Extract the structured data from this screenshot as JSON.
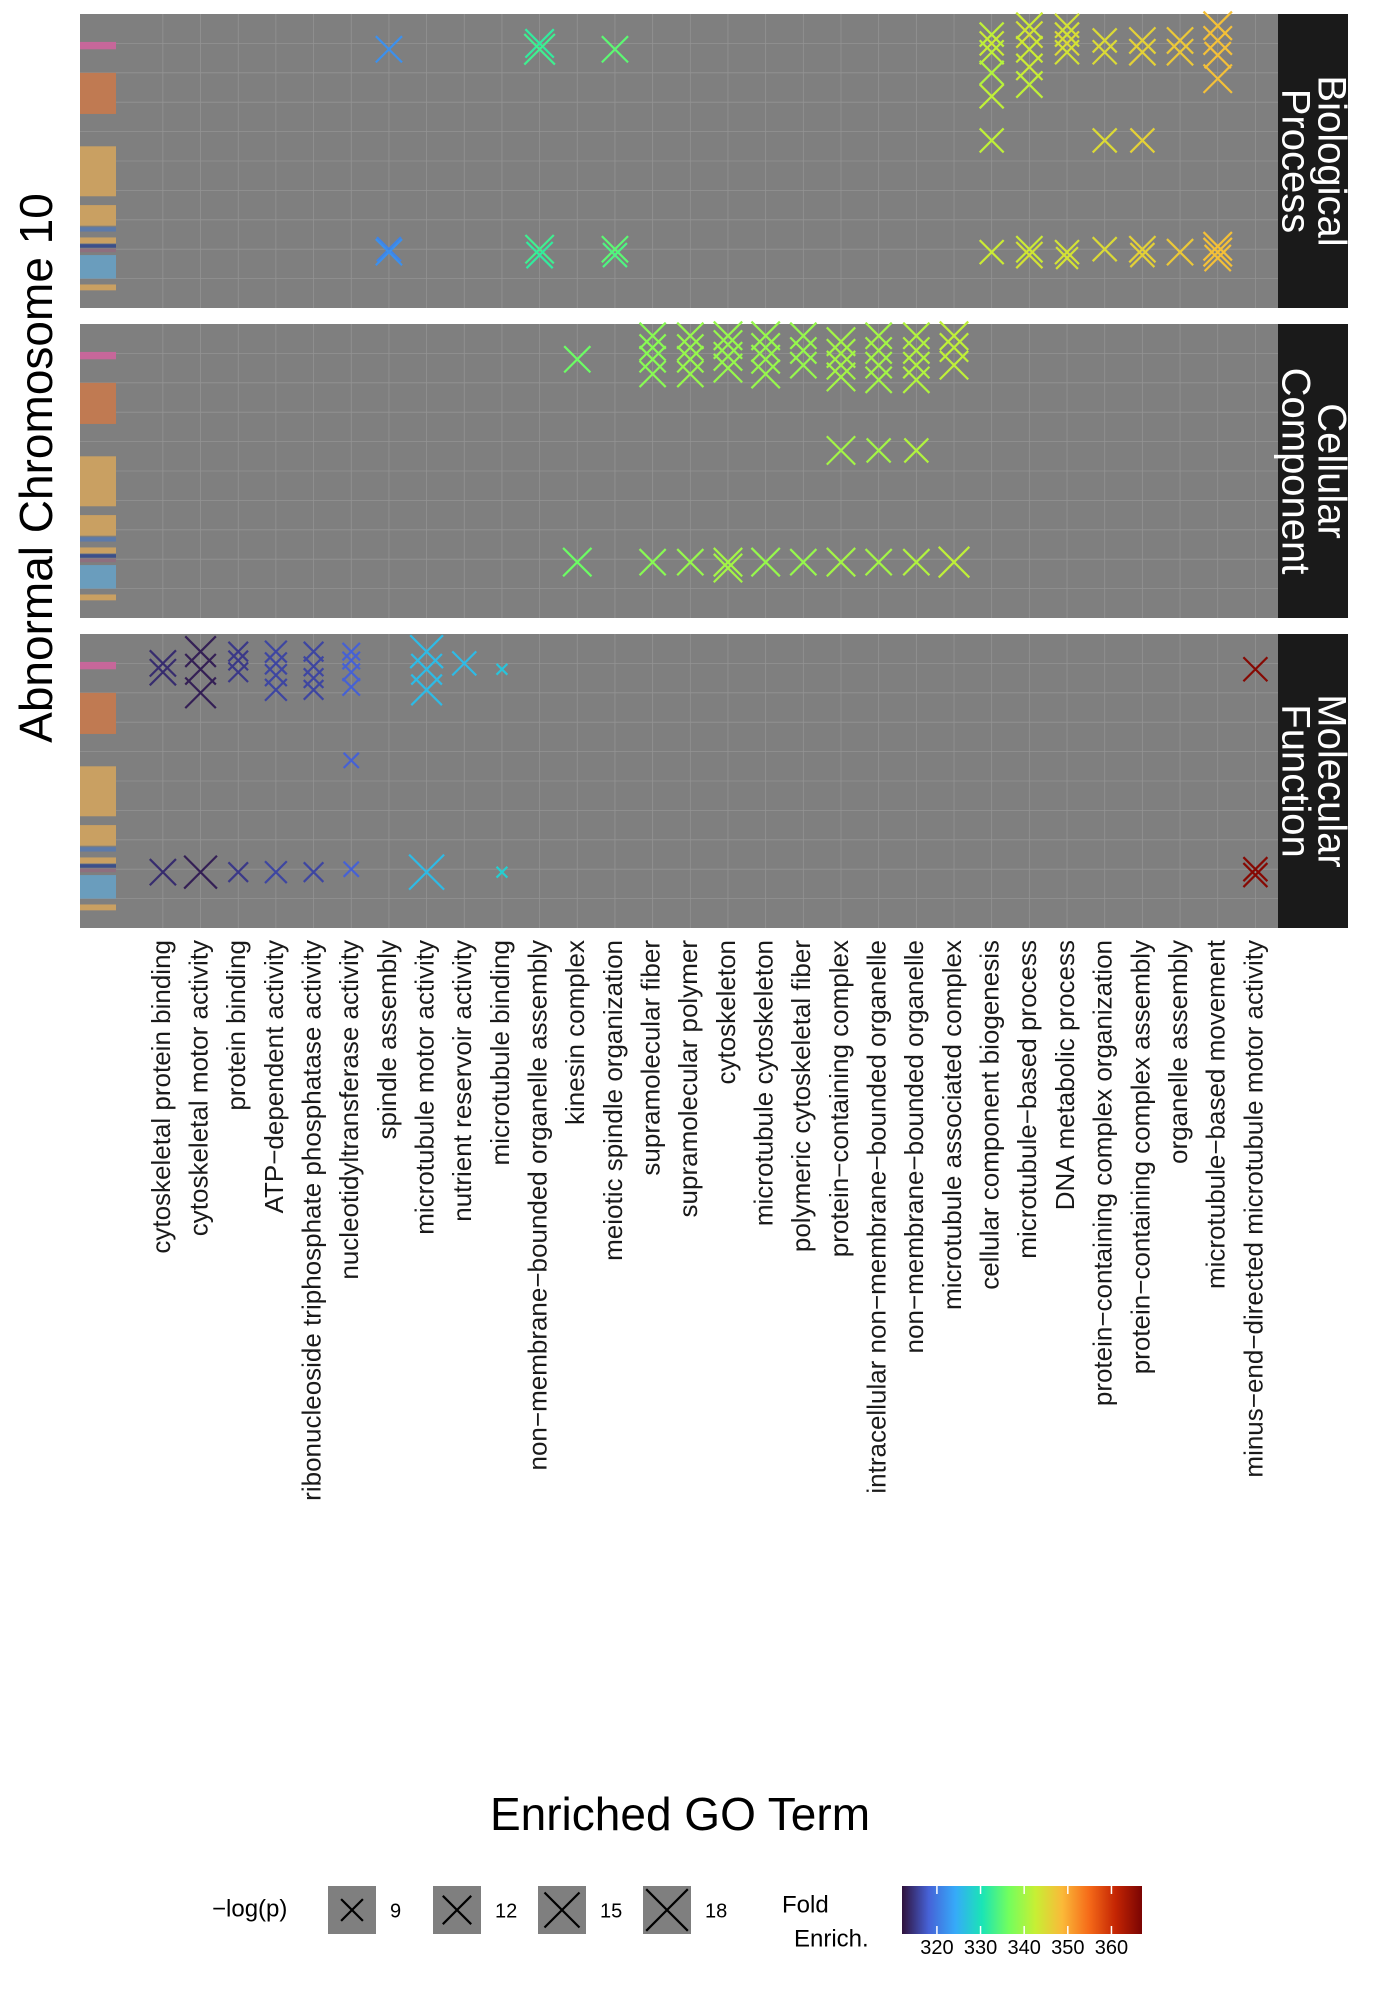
{
  "chart_data": {
    "type": "scatter",
    "title": "",
    "xlabel": "Enriched GO Term",
    "ylabel": "Abnormal Chromosome 10",
    "marker": "x",
    "background_color": "#7f7f7f",
    "grid": true,
    "categories": [
      "cytoskeletal protein binding",
      "cytoskeletal motor activity",
      "protein binding",
      "ATP−dependent activity",
      "ribonucleoside triphosphate phosphatase activity",
      "nucleotidyltransferase activity",
      "spindle assembly",
      "microtubule motor activity",
      "nutrient reservoir activity",
      "microtubule binding",
      "non−membrane−bounded organelle assembly",
      "kinesin complex",
      "meiotic spindle organization",
      "supramolecular fiber",
      "supramolecular polymer",
      "cytoskeleton",
      "microtubule cytoskeleton",
      "polymeric cytoskeletal fiber",
      "protein−containing complex",
      "intracellular non−membrane−bounded organelle",
      "non−membrane−bounded organelle",
      "microtubule associated complex",
      "cellular component biogenesis",
      "microtubule−based process",
      "DNA metabolic process",
      "protein−containing complex organization",
      "protein−containing complex assembly",
      "organelle assembly",
      "microtubule−based movement",
      "minus−end−directed microtubule motor activity"
    ],
    "facets": [
      "Biological Process",
      "Cellular Component",
      "Molecular Function"
    ],
    "facet_labels": [
      [
        "Biological",
        "Process"
      ],
      [
        "Cellular",
        "Component"
      ],
      [
        "Molecular",
        "Function"
      ]
    ],
    "chromosome_bands": [
      {
        "y": 0.88,
        "h": 0.025,
        "color": "#c7679a"
      },
      {
        "y": 0.66,
        "h": 0.14,
        "color": "#c07a52"
      },
      {
        "y": 0.38,
        "h": 0.17,
        "color": "#c9a062"
      },
      {
        "y": 0.28,
        "h": 0.07,
        "color": "#c9a062"
      },
      {
        "y": 0.26,
        "h": 0.015,
        "color": "#5d7aa8"
      },
      {
        "y": 0.22,
        "h": 0.02,
        "color": "#c9a062"
      },
      {
        "y": 0.205,
        "h": 0.012,
        "color": "#3b4f8a"
      },
      {
        "y": 0.19,
        "h": 0.012,
        "color": "#8e6f7f"
      },
      {
        "y": 0.1,
        "h": 0.08,
        "color": "#6a9dbd"
      },
      {
        "y": 0.06,
        "h": 0.02,
        "color": "#c9a062"
      }
    ],
    "ylim": [
      0,
      1
    ],
    "size_legend": {
      "title": "−log(p)",
      "values": [
        9,
        12,
        15,
        18
      ]
    },
    "color_legend": {
      "title_lines": [
        "Fold",
        "Enrich."
      ],
      "ticks": [
        320,
        330,
        340,
        350,
        360
      ],
      "range": [
        312,
        367
      ],
      "colors": [
        "#30123b",
        "#4662d7",
        "#36aaf9",
        "#1ae4b6",
        "#72fe5e",
        "#c7ef34",
        "#faba39",
        "#f66b19",
        "#c42503",
        "#7a0403"
      ]
    },
    "series": [
      {
        "facet": "Biological Process",
        "points": [
          {
            "x": 6,
            "y": 0.88,
            "logp": 11,
            "fe": 322
          },
          {
            "x": 6,
            "y": 0.2,
            "logp": 10,
            "fe": 321
          },
          {
            "x": 6,
            "y": 0.19,
            "logp": 11,
            "fe": 322
          },
          {
            "x": 10,
            "y": 0.9,
            "logp": 12,
            "fe": 332
          },
          {
            "x": 10,
            "y": 0.88,
            "logp": 13,
            "fe": 333
          },
          {
            "x": 10,
            "y": 0.2,
            "logp": 12,
            "fe": 333
          },
          {
            "x": 10,
            "y": 0.18,
            "logp": 11,
            "fe": 332
          },
          {
            "x": 12,
            "y": 0.88,
            "logp": 11,
            "fe": 335
          },
          {
            "x": 12,
            "y": 0.2,
            "logp": 11,
            "fe": 335
          },
          {
            "x": 12,
            "y": 0.18,
            "logp": 10,
            "fe": 334
          },
          {
            "x": 22,
            "y": 0.93,
            "logp": 10,
            "fe": 342
          },
          {
            "x": 22,
            "y": 0.9,
            "logp": 10,
            "fe": 343
          },
          {
            "x": 22,
            "y": 0.87,
            "logp": 10,
            "fe": 342
          },
          {
            "x": 22,
            "y": 0.8,
            "logp": 10,
            "fe": 341
          },
          {
            "x": 22,
            "y": 0.72,
            "logp": 10,
            "fe": 342
          },
          {
            "x": 22,
            "y": 0.57,
            "logp": 10,
            "fe": 342
          },
          {
            "x": 22,
            "y": 0.19,
            "logp": 10,
            "fe": 343
          },
          {
            "x": 23,
            "y": 0.96,
            "logp": 11,
            "fe": 343
          },
          {
            "x": 23,
            "y": 0.93,
            "logp": 11,
            "fe": 344
          },
          {
            "x": 23,
            "y": 0.88,
            "logp": 11,
            "fe": 343
          },
          {
            "x": 23,
            "y": 0.82,
            "logp": 11,
            "fe": 343
          },
          {
            "x": 23,
            "y": 0.76,
            "logp": 11,
            "fe": 342
          },
          {
            "x": 23,
            "y": 0.2,
            "logp": 11,
            "fe": 343
          },
          {
            "x": 23,
            "y": 0.18,
            "logp": 11,
            "fe": 344
          },
          {
            "x": 24,
            "y": 0.96,
            "logp": 10,
            "fe": 344
          },
          {
            "x": 24,
            "y": 0.93,
            "logp": 10,
            "fe": 344
          },
          {
            "x": 24,
            "y": 0.9,
            "logp": 10,
            "fe": 345
          },
          {
            "x": 24,
            "y": 0.87,
            "logp": 10,
            "fe": 344
          },
          {
            "x": 24,
            "y": 0.19,
            "logp": 10,
            "fe": 344
          },
          {
            "x": 24,
            "y": 0.17,
            "logp": 9,
            "fe": 344
          },
          {
            "x": 25,
            "y": 0.91,
            "logp": 10,
            "fe": 345
          },
          {
            "x": 25,
            "y": 0.87,
            "logp": 10,
            "fe": 345
          },
          {
            "x": 25,
            "y": 0.57,
            "logp": 10,
            "fe": 345
          },
          {
            "x": 25,
            "y": 0.2,
            "logp": 10,
            "fe": 345
          },
          {
            "x": 26,
            "y": 0.91,
            "logp": 11,
            "fe": 346
          },
          {
            "x": 26,
            "y": 0.87,
            "logp": 11,
            "fe": 346
          },
          {
            "x": 26,
            "y": 0.57,
            "logp": 10,
            "fe": 346
          },
          {
            "x": 26,
            "y": 0.2,
            "logp": 11,
            "fe": 346
          },
          {
            "x": 26,
            "y": 0.18,
            "logp": 10,
            "fe": 346
          },
          {
            "x": 27,
            "y": 0.91,
            "logp": 11,
            "fe": 347
          },
          {
            "x": 27,
            "y": 0.87,
            "logp": 11,
            "fe": 347
          },
          {
            "x": 27,
            "y": 0.19,
            "logp": 11,
            "fe": 347
          },
          {
            "x": 28,
            "y": 0.96,
            "logp": 12,
            "fe": 348
          },
          {
            "x": 28,
            "y": 0.91,
            "logp": 12,
            "fe": 348
          },
          {
            "x": 28,
            "y": 0.86,
            "logp": 11,
            "fe": 348
          },
          {
            "x": 28,
            "y": 0.78,
            "logp": 12,
            "fe": 348
          },
          {
            "x": 28,
            "y": 0.21,
            "logp": 12,
            "fe": 348
          },
          {
            "x": 28,
            "y": 0.19,
            "logp": 12,
            "fe": 348
          },
          {
            "x": 28,
            "y": 0.17,
            "logp": 11,
            "fe": 348
          }
        ]
      },
      {
        "facet": "Cellular Component",
        "points": [
          {
            "x": 11,
            "y": 0.88,
            "logp": 11,
            "fe": 336
          },
          {
            "x": 11,
            "y": 0.19,
            "logp": 12,
            "fe": 336
          },
          {
            "x": 13,
            "y": 0.96,
            "logp": 11,
            "fe": 338
          },
          {
            "x": 13,
            "y": 0.92,
            "logp": 11,
            "fe": 338
          },
          {
            "x": 13,
            "y": 0.88,
            "logp": 11,
            "fe": 338
          },
          {
            "x": 13,
            "y": 0.83,
            "logp": 11,
            "fe": 338
          },
          {
            "x": 13,
            "y": 0.19,
            "logp": 11,
            "fe": 338
          },
          {
            "x": 14,
            "y": 0.96,
            "logp": 11,
            "fe": 339
          },
          {
            "x": 14,
            "y": 0.92,
            "logp": 11,
            "fe": 339
          },
          {
            "x": 14,
            "y": 0.88,
            "logp": 11,
            "fe": 339
          },
          {
            "x": 14,
            "y": 0.83,
            "logp": 11,
            "fe": 339
          },
          {
            "x": 14,
            "y": 0.19,
            "logp": 11,
            "fe": 339
          },
          {
            "x": 15,
            "y": 0.96,
            "logp": 12,
            "fe": 339
          },
          {
            "x": 15,
            "y": 0.93,
            "logp": 12,
            "fe": 339
          },
          {
            "x": 15,
            "y": 0.89,
            "logp": 12,
            "fe": 339
          },
          {
            "x": 15,
            "y": 0.85,
            "logp": 12,
            "fe": 339
          },
          {
            "x": 15,
            "y": 0.19,
            "logp": 12,
            "fe": 340
          },
          {
            "x": 15,
            "y": 0.17,
            "logp": 12,
            "fe": 340
          },
          {
            "x": 16,
            "y": 0.96,
            "logp": 12,
            "fe": 339
          },
          {
            "x": 16,
            "y": 0.92,
            "logp": 12,
            "fe": 339
          },
          {
            "x": 16,
            "y": 0.88,
            "logp": 12,
            "fe": 339
          },
          {
            "x": 16,
            "y": 0.83,
            "logp": 12,
            "fe": 339
          },
          {
            "x": 16,
            "y": 0.19,
            "logp": 12,
            "fe": 339
          },
          {
            "x": 17,
            "y": 0.96,
            "logp": 11,
            "fe": 339
          },
          {
            "x": 17,
            "y": 0.91,
            "logp": 11,
            "fe": 339
          },
          {
            "x": 17,
            "y": 0.86,
            "logp": 11,
            "fe": 339
          },
          {
            "x": 17,
            "y": 0.19,
            "logp": 11,
            "fe": 339
          },
          {
            "x": 18,
            "y": 0.94,
            "logp": 12,
            "fe": 340
          },
          {
            "x": 18,
            "y": 0.9,
            "logp": 12,
            "fe": 340
          },
          {
            "x": 18,
            "y": 0.86,
            "logp": 12,
            "fe": 340
          },
          {
            "x": 18,
            "y": 0.82,
            "logp": 12,
            "fe": 340
          },
          {
            "x": 18,
            "y": 0.57,
            "logp": 12,
            "fe": 340
          },
          {
            "x": 18,
            "y": 0.19,
            "logp": 12,
            "fe": 340
          },
          {
            "x": 19,
            "y": 0.96,
            "logp": 11,
            "fe": 340
          },
          {
            "x": 19,
            "y": 0.91,
            "logp": 11,
            "fe": 340
          },
          {
            "x": 19,
            "y": 0.86,
            "logp": 11,
            "fe": 340
          },
          {
            "x": 19,
            "y": 0.81,
            "logp": 11,
            "fe": 340
          },
          {
            "x": 19,
            "y": 0.57,
            "logp": 10,
            "fe": 340
          },
          {
            "x": 19,
            "y": 0.19,
            "logp": 11,
            "fe": 340
          },
          {
            "x": 20,
            "y": 0.96,
            "logp": 11,
            "fe": 341
          },
          {
            "x": 20,
            "y": 0.91,
            "logp": 11,
            "fe": 341
          },
          {
            "x": 20,
            "y": 0.86,
            "logp": 11,
            "fe": 341
          },
          {
            "x": 20,
            "y": 0.81,
            "logp": 11,
            "fe": 341
          },
          {
            "x": 20,
            "y": 0.57,
            "logp": 10,
            "fe": 341
          },
          {
            "x": 20,
            "y": 0.19,
            "logp": 11,
            "fe": 341
          },
          {
            "x": 21,
            "y": 0.96,
            "logp": 12,
            "fe": 342
          },
          {
            "x": 21,
            "y": 0.92,
            "logp": 12,
            "fe": 342
          },
          {
            "x": 21,
            "y": 0.86,
            "logp": 12,
            "fe": 342
          },
          {
            "x": 21,
            "y": 0.19,
            "logp": 13,
            "fe": 342
          }
        ]
      },
      {
        "facet": "Molecular Function",
        "points": [
          {
            "x": 0,
            "y": 0.9,
            "logp": 11,
            "fe": 314
          },
          {
            "x": 0,
            "y": 0.87,
            "logp": 11,
            "fe": 314
          },
          {
            "x": 0,
            "y": 0.19,
            "logp": 11,
            "fe": 314
          },
          {
            "x": 1,
            "y": 0.94,
            "logp": 13,
            "fe": 313
          },
          {
            "x": 1,
            "y": 0.88,
            "logp": 13,
            "fe": 313
          },
          {
            "x": 1,
            "y": 0.8,
            "logp": 13,
            "fe": 313
          },
          {
            "x": 1,
            "y": 0.19,
            "logp": 14,
            "fe": 313
          },
          {
            "x": 2,
            "y": 0.94,
            "logp": 8,
            "fe": 315
          },
          {
            "x": 2,
            "y": 0.91,
            "logp": 8,
            "fe": 315
          },
          {
            "x": 2,
            "y": 0.87,
            "logp": 8,
            "fe": 315
          },
          {
            "x": 2,
            "y": 0.19,
            "logp": 8,
            "fe": 315
          },
          {
            "x": 3,
            "y": 0.94,
            "logp": 9,
            "fe": 316
          },
          {
            "x": 3,
            "y": 0.9,
            "logp": 9,
            "fe": 316
          },
          {
            "x": 3,
            "y": 0.86,
            "logp": 9,
            "fe": 316
          },
          {
            "x": 3,
            "y": 0.81,
            "logp": 9,
            "fe": 316
          },
          {
            "x": 3,
            "y": 0.19,
            "logp": 9,
            "fe": 316
          },
          {
            "x": 4,
            "y": 0.94,
            "logp": 8,
            "fe": 316
          },
          {
            "x": 4,
            "y": 0.89,
            "logp": 8,
            "fe": 316
          },
          {
            "x": 4,
            "y": 0.85,
            "logp": 8,
            "fe": 316
          },
          {
            "x": 4,
            "y": 0.81,
            "logp": 8,
            "fe": 316
          },
          {
            "x": 4,
            "y": 0.19,
            "logp": 8,
            "fe": 316
          },
          {
            "x": 5,
            "y": 0.94,
            "logp": 7,
            "fe": 318
          },
          {
            "x": 5,
            "y": 0.91,
            "logp": 7,
            "fe": 318
          },
          {
            "x": 5,
            "y": 0.87,
            "logp": 7,
            "fe": 318
          },
          {
            "x": 5,
            "y": 0.82,
            "logp": 7,
            "fe": 318
          },
          {
            "x": 5,
            "y": 0.57,
            "logp": 6,
            "fe": 318
          },
          {
            "x": 5,
            "y": 0.2,
            "logp": 6,
            "fe": 318
          },
          {
            "x": 7,
            "y": 0.94,
            "logp": 14,
            "fe": 326
          },
          {
            "x": 7,
            "y": 0.88,
            "logp": 13,
            "fe": 326
          },
          {
            "x": 7,
            "y": 0.81,
            "logp": 13,
            "fe": 326
          },
          {
            "x": 7,
            "y": 0.19,
            "logp": 15,
            "fe": 326
          },
          {
            "x": 8,
            "y": 0.9,
            "logp": 10,
            "fe": 326
          },
          {
            "x": 9,
            "y": 0.88,
            "logp": 4,
            "fe": 327
          },
          {
            "x": 9,
            "y": 0.19,
            "logp": 4,
            "fe": 328
          },
          {
            "x": 29,
            "y": 0.88,
            "logp": 10,
            "fe": 366
          },
          {
            "x": 29,
            "y": 0.2,
            "logp": 10,
            "fe": 366
          },
          {
            "x": 29,
            "y": 0.18,
            "logp": 10,
            "fe": 366
          }
        ]
      }
    ]
  }
}
